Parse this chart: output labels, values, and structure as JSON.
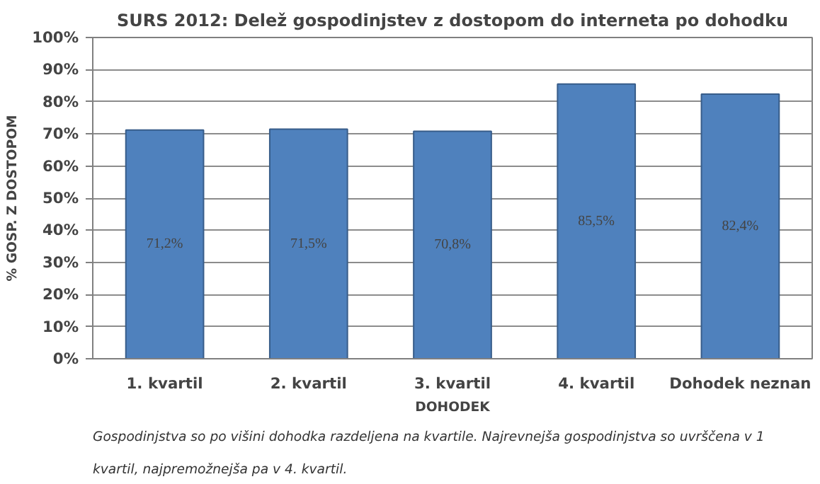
{
  "chart_data": {
    "type": "bar",
    "title": "SURS 2012: Delež gospodinjstev z dostopom do interneta po dohodku",
    "xlabel": "DOHODEK",
    "ylabel": "% GOSP. Z DOSTOPOM",
    "categories": [
      "1. kvartil",
      "2. kvartil",
      "3. kvartil",
      "4. kvartil",
      "Dohodek neznan"
    ],
    "values": [
      71.2,
      71.5,
      70.8,
      85.5,
      82.4
    ],
    "value_labels": [
      "71,2%",
      "71,5%",
      "70,8%",
      "85,5%",
      "82,4%"
    ],
    "color": "#4f81bd",
    "ylim": [
      0,
      100
    ],
    "yticks": [
      {
        "value": 0,
        "label": "0%"
      },
      {
        "value": 10,
        "label": "10%"
      },
      {
        "value": 20,
        "label": "20%"
      },
      {
        "value": 30,
        "label": "30%"
      },
      {
        "value": 40,
        "label": "40%"
      },
      {
        "value": 50,
        "label": "50%"
      },
      {
        "value": 60,
        "label": "60%"
      },
      {
        "value": 70,
        "label": "70%"
      },
      {
        "value": 80,
        "label": "80%"
      },
      {
        "value": 90,
        "label": "90%"
      },
      {
        "value": 100,
        "label": "100%"
      }
    ],
    "grid": "y",
    "annotations": [
      "Gospodinjstva so po višini dohodka razdeljena na kvartile. Najrevnejša gospodinjstva so uvrščena v 1 kvartil, najpremožnejša pa v 4. kvartil."
    ]
  }
}
